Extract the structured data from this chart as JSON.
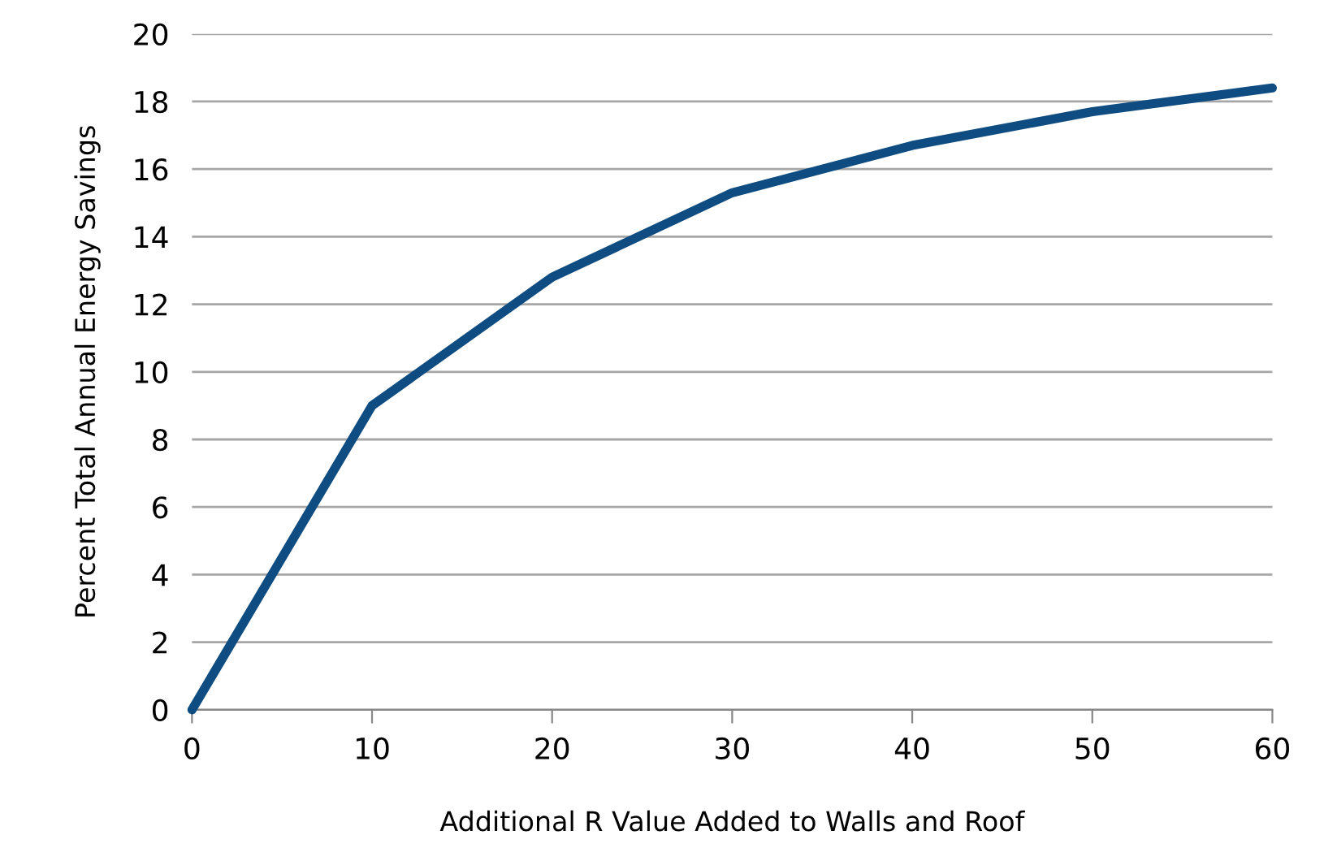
{
  "chart_data": {
    "type": "line",
    "xlabel": "Additional R Value Added to Walls and Roof",
    "ylabel": "Percent Total Annual Energy Savings",
    "x": [
      0,
      10,
      20,
      30,
      40,
      50,
      60
    ],
    "series": [
      {
        "color": "#0f4c81",
        "values": [
          0,
          9.0,
          12.8,
          15.3,
          16.7,
          17.7,
          18.4
        ]
      }
    ],
    "xlim": [
      0,
      60
    ],
    "xticks": [
      0,
      10,
      20,
      30,
      40,
      50,
      60
    ],
    "ylim": [
      0,
      20
    ],
    "yticks": [
      0,
      2,
      4,
      6,
      8,
      10,
      12,
      14,
      16,
      18,
      20
    ],
    "grid": "y",
    "marker": "none",
    "line_style": "solid"
  }
}
